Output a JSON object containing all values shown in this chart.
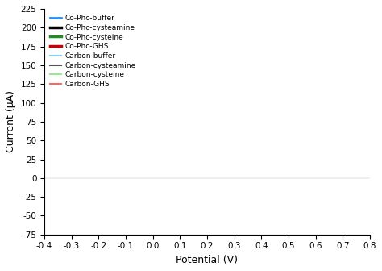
{
  "title": "",
  "xlabel": "Potential (V)",
  "ylabel": "Current (μA)",
  "xlim": [
    -0.4,
    0.8
  ],
  "ylim": [
    -75,
    225
  ],
  "xticks": [
    -0.4,
    -0.3,
    -0.2,
    -0.1,
    0.0,
    0.1,
    0.2,
    0.3,
    0.4,
    0.5,
    0.6,
    0.7,
    0.8
  ],
  "yticks": [
    -75,
    -50,
    -25,
    0,
    25,
    50,
    75,
    100,
    125,
    150,
    175,
    200,
    225
  ],
  "legend_entries": [
    "Co-Phc-buffer",
    "Co-Phc-cysteamine",
    "Co-Phc-cysteine",
    "Co-Phc-GHS",
    "Carbon-buffer",
    "Carbon-cysteamine",
    "Carbon-cysteine",
    "Carbon-GHS"
  ],
  "colors": {
    "Co-Phc-buffer": "#1E90FF",
    "Co-Phc-cysteamine": "#000000",
    "Co-Phc-cysteine": "#228B22",
    "Co-Phc-GHS": "#CC0000",
    "Carbon-buffer": "#87CEEB",
    "Carbon-cysteamine": "#555555",
    "Carbon-cysteine": "#90EE90",
    "Carbon-GHS": "#FF6666"
  },
  "linewidths": {
    "Co-Phc-buffer": 2.0,
    "Co-Phc-cysteamine": 2.5,
    "Co-Phc-cysteine": 2.5,
    "Co-Phc-GHS": 2.5,
    "Carbon-buffer": 1.5,
    "Carbon-cysteamine": 1.5,
    "Carbon-cysteine": 1.5,
    "Carbon-GHS": 1.5
  }
}
